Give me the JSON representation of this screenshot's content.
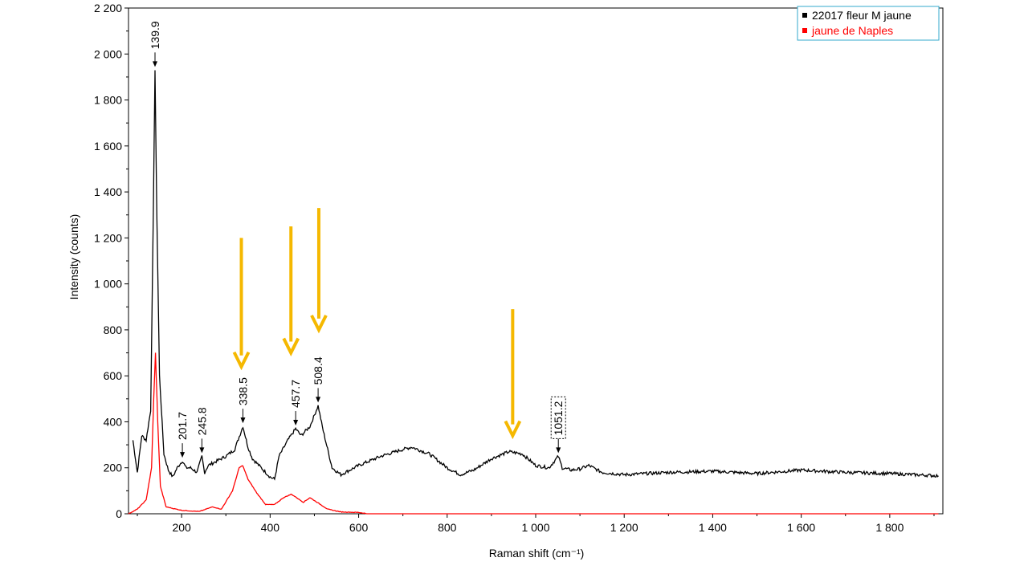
{
  "chart_data": {
    "type": "line",
    "xlabel": "Raman shift (cm⁻¹)",
    "ylabel": "Intensity (counts)",
    "xlim": [
      80,
      1920
    ],
    "ylim": [
      0,
      2200
    ],
    "x_ticks": [
      200,
      400,
      600,
      800,
      1000,
      1200,
      1400,
      1600,
      1800
    ],
    "x_tick_labels": [
      "200",
      "400",
      "600",
      "800",
      "1 000",
      "1 200",
      "1 400",
      "1 600",
      "1 800"
    ],
    "y_ticks": [
      0,
      200,
      400,
      600,
      800,
      1000,
      1200,
      1400,
      1600,
      1800,
      2000,
      2200
    ],
    "y_tick_labels": [
      "0",
      "200",
      "400",
      "600",
      "800",
      "1 000",
      "1 200",
      "1 400",
      "1 600",
      "1 800",
      "2 000",
      "2 200"
    ],
    "grid": false,
    "legend_position": "top-right",
    "series": [
      {
        "name": "22017 fleur M jaune",
        "color": "#000000",
        "points": [
          [
            90,
            320
          ],
          [
            100,
            180
          ],
          [
            110,
            340
          ],
          [
            120,
            320
          ],
          [
            130,
            450
          ],
          [
            136,
            1300
          ],
          [
            139.9,
            1930
          ],
          [
            144,
            1300
          ],
          [
            150,
            600
          ],
          [
            160,
            260
          ],
          [
            170,
            190
          ],
          [
            180,
            160
          ],
          [
            190,
            200
          ],
          [
            201.7,
            230
          ],
          [
            210,
            200
          ],
          [
            220,
            200
          ],
          [
            235,
            180
          ],
          [
            245.8,
            250
          ],
          [
            252,
            180
          ],
          [
            260,
            210
          ],
          [
            280,
            230
          ],
          [
            300,
            250
          ],
          [
            320,
            280
          ],
          [
            338.5,
            380
          ],
          [
            350,
            290
          ],
          [
            360,
            240
          ],
          [
            380,
            200
          ],
          [
            400,
            160
          ],
          [
            410,
            150
          ],
          [
            420,
            250
          ],
          [
            440,
            320
          ],
          [
            457.7,
            370
          ],
          [
            470,
            340
          ],
          [
            490,
            380
          ],
          [
            508.4,
            470
          ],
          [
            520,
            360
          ],
          [
            540,
            200
          ],
          [
            560,
            170
          ],
          [
            600,
            210
          ],
          [
            650,
            250
          ],
          [
            700,
            280
          ],
          [
            720,
            290
          ],
          [
            760,
            260
          ],
          [
            800,
            200
          ],
          [
            830,
            170
          ],
          [
            860,
            190
          ],
          [
            900,
            240
          ],
          [
            940,
            270
          ],
          [
            970,
            260
          ],
          [
            1000,
            210
          ],
          [
            1030,
            200
          ],
          [
            1051.2,
            250
          ],
          [
            1060,
            200
          ],
          [
            1080,
            190
          ],
          [
            1100,
            195
          ],
          [
            1120,
            210
          ],
          [
            1150,
            180
          ],
          [
            1200,
            170
          ],
          [
            1300,
            180
          ],
          [
            1400,
            185
          ],
          [
            1500,
            175
          ],
          [
            1600,
            190
          ],
          [
            1700,
            180
          ],
          [
            1800,
            175
          ],
          [
            1910,
            165
          ]
        ]
      },
      {
        "name": "jaune de Naples",
        "color": "#ff0000",
        "points": [
          [
            80,
            0
          ],
          [
            100,
            20
          ],
          [
            120,
            60
          ],
          [
            132,
            200
          ],
          [
            137,
            500
          ],
          [
            141,
            700
          ],
          [
            146,
            400
          ],
          [
            152,
            120
          ],
          [
            165,
            30
          ],
          [
            200,
            15
          ],
          [
            240,
            10
          ],
          [
            270,
            30
          ],
          [
            290,
            20
          ],
          [
            315,
            100
          ],
          [
            330,
            200
          ],
          [
            338,
            210
          ],
          [
            350,
            150
          ],
          [
            370,
            90
          ],
          [
            390,
            40
          ],
          [
            410,
            40
          ],
          [
            430,
            70
          ],
          [
            448,
            85
          ],
          [
            460,
            70
          ],
          [
            475,
            50
          ],
          [
            490,
            70
          ],
          [
            510,
            45
          ],
          [
            530,
            20
          ],
          [
            560,
            8
          ],
          [
            600,
            6
          ],
          [
            620,
            0
          ],
          [
            1910,
            0
          ]
        ]
      }
    ],
    "peak_labels": [
      {
        "x": 139.9,
        "y": 1930,
        "label": "139.9",
        "boxed": false
      },
      {
        "x": 201.7,
        "y": 230,
        "label": "201.7",
        "boxed": false
      },
      {
        "x": 245.8,
        "y": 250,
        "label": "245.8",
        "boxed": false
      },
      {
        "x": 338.5,
        "y": 380,
        "label": "338.5",
        "boxed": false
      },
      {
        "x": 457.7,
        "y": 370,
        "label": "457.7",
        "boxed": false
      },
      {
        "x": 508.4,
        "y": 470,
        "label": "508.4",
        "boxed": false
      },
      {
        "x": 1051.2,
        "y": 250,
        "label": "1051.2",
        "boxed": true
      }
    ],
    "highlight_arrows": {
      "color": "#f5b800",
      "items": [
        {
          "x": 335,
          "y_top": 1200,
          "y_tip": 640
        },
        {
          "x": 447,
          "y_top": 1250,
          "y_tip": 700
        },
        {
          "x": 510,
          "y_top": 1330,
          "y_tip": 800
        },
        {
          "x": 948,
          "y_top": 890,
          "y_tip": 340
        }
      ]
    }
  }
}
